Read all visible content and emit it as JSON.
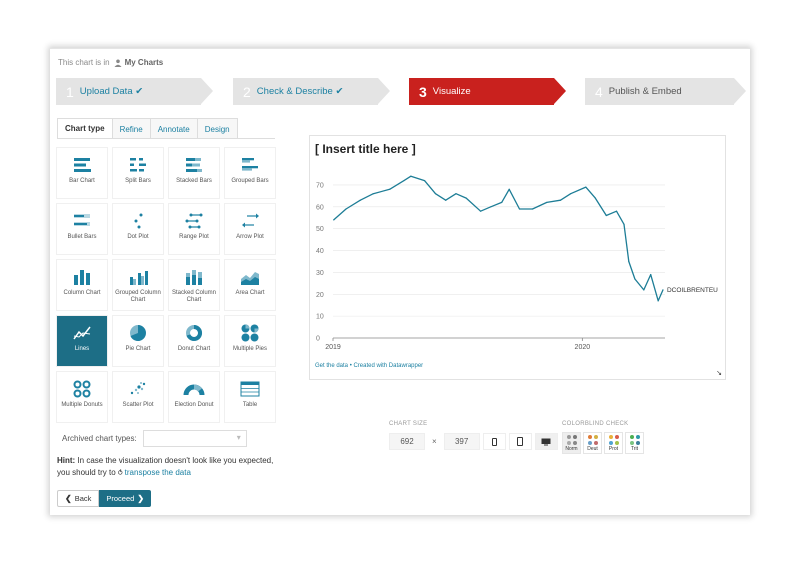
{
  "breadcrumb": {
    "prefix": "This chart is in",
    "folder": "My Charts"
  },
  "steps": [
    {
      "num": "1",
      "label": "Upload Data ✔"
    },
    {
      "num": "2",
      "label": "Check & Describe ✔"
    },
    {
      "num": "3",
      "label": "Visualize"
    },
    {
      "num": "4",
      "label": "Publish & Embed"
    }
  ],
  "tabs": [
    "Chart type",
    "Refine",
    "Annotate",
    "Design"
  ],
  "chart_types": [
    "Bar Chart",
    "Split Bars",
    "Stacked Bars",
    "Grouped Bars",
    "Bullet Bars",
    "Dot Plot",
    "Range Plot",
    "Arrow Plot",
    "Column Chart",
    "Grouped Column Chart",
    "Stacked Column Chart",
    "Area Chart",
    "Lines",
    "Pie Chart",
    "Donut Chart",
    "Multiple Pies",
    "Multiple Donuts",
    "Scatter Plot",
    "Election Donut",
    "Table"
  ],
  "selected_type": "Lines",
  "archived_label": "Archived chart types:",
  "hint": {
    "bold": "Hint:",
    "text": " In case the visualization doesn't look like you expected, you should try to ",
    "link": "transpose the data"
  },
  "buttons": {
    "back": "Back",
    "proceed": "Proceed"
  },
  "preview": {
    "title": "[ Insert title here ]",
    "footer": "Get the data • Created with Datawrapper",
    "series_label": "DCOILBRENTEU"
  },
  "chart_size": {
    "label": "CHART SIZE",
    "width": "692",
    "height": "397",
    "times": "×"
  },
  "colorblind": {
    "label": "COLORBLIND CHECK",
    "modes": [
      "Norm",
      "Deut",
      "Prot",
      "Trit"
    ]
  },
  "colors": {
    "accent": "#1d81a2",
    "active_step": "#c9211e",
    "line": "#1d7d96"
  },
  "chart_data": {
    "type": "line",
    "title": "[ Insert title here ]",
    "x": [
      "2019-01-02",
      "2019-01-20",
      "2019-02-10",
      "2019-03-01",
      "2019-03-25",
      "2019-04-15",
      "2019-04-25",
      "2019-05-15",
      "2019-05-31",
      "2019-06-15",
      "2019-06-30",
      "2019-07-15",
      "2019-08-05",
      "2019-08-20",
      "2019-09-05",
      "2019-09-16",
      "2019-10-01",
      "2019-10-20",
      "2019-11-10",
      "2019-11-30",
      "2019-12-15",
      "2020-01-06",
      "2020-01-20",
      "2020-02-05",
      "2020-02-20",
      "2020-03-02",
      "2020-03-09",
      "2020-03-18",
      "2020-03-31",
      "2020-04-10",
      "2020-04-21",
      "2020-04-28"
    ],
    "series": [
      {
        "name": "DCOILBRENTEU",
        "values": [
          54,
          59,
          63,
          66,
          68,
          72,
          74,
          72,
          66,
          63,
          66,
          64,
          58,
          60,
          62,
          68,
          59,
          59,
          62,
          63,
          66,
          69,
          64,
          56,
          58,
          52,
          35,
          27,
          22,
          29,
          17,
          22
        ]
      }
    ],
    "yticks": [
      0,
      10,
      20,
      30,
      40,
      50,
      60,
      70
    ],
    "xticks": [
      "2019",
      "2020"
    ],
    "ylim": [
      0,
      75
    ],
    "grid": true
  }
}
